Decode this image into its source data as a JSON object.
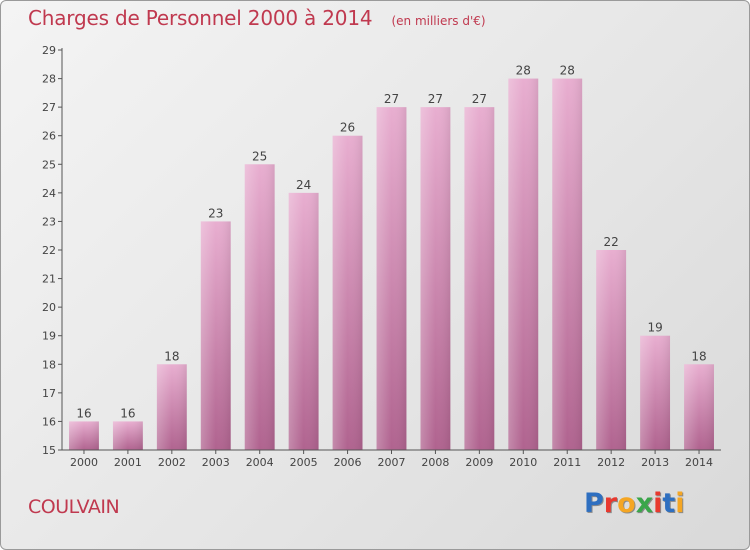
{
  "header": {
    "title": "Charges de Personnel 2000 à 2014",
    "subtitle": "(en milliers d'€)"
  },
  "footer": {
    "place": "COULVAIN",
    "brand": "Proxiti",
    "brand_colors": [
      "#2e6fc0",
      "#e8392f",
      "#f5a623",
      "#3aa64a",
      "#e8392f",
      "#2e6fc0",
      "#f5a623"
    ]
  },
  "colors": {
    "accent": "#c0394f",
    "bar_top": "#e8aed0",
    "bar_bottom": "#b0638f"
  },
  "chart_data": {
    "type": "bar",
    "title": "Charges de Personnel 2000 à 2014",
    "subtitle": "(en milliers d'€)",
    "categories": [
      "2000",
      "2001",
      "2002",
      "2003",
      "2004",
      "2005",
      "2006",
      "2007",
      "2008",
      "2009",
      "2010",
      "2011",
      "2012",
      "2013",
      "2014"
    ],
    "values": [
      16,
      16,
      18,
      23,
      25,
      24,
      26,
      27,
      27,
      27,
      28,
      28,
      22,
      19,
      18
    ],
    "ylim": [
      15,
      29
    ],
    "yticks": [
      15,
      16,
      17,
      18,
      19,
      20,
      21,
      22,
      23,
      24,
      25,
      26,
      27,
      28,
      29
    ],
    "grid": false,
    "legend": "none"
  }
}
